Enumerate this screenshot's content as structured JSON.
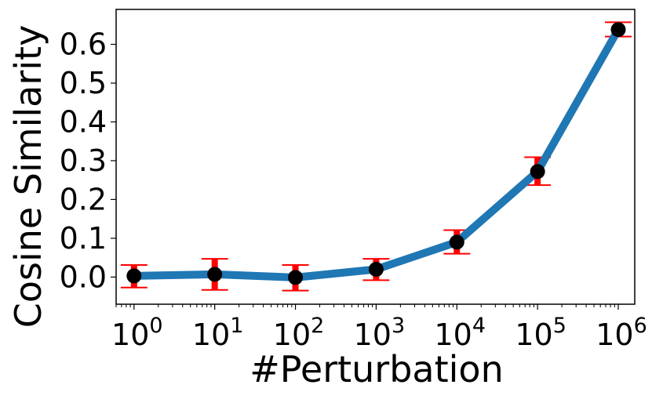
{
  "chart_data": {
    "type": "line",
    "xscale": "log",
    "xlabel": "#Perturbation",
    "ylabel": "Cosine Similarity",
    "xlim": [
      0.6,
      1600000
    ],
    "ylim": [
      -0.07,
      0.69
    ],
    "x_ticks": [
      {
        "value": 1,
        "base": "10",
        "exp": "0"
      },
      {
        "value": 10,
        "base": "10",
        "exp": "1"
      },
      {
        "value": 100,
        "base": "10",
        "exp": "2"
      },
      {
        "value": 1000,
        "base": "10",
        "exp": "3"
      },
      {
        "value": 10000,
        "base": "10",
        "exp": "4"
      },
      {
        "value": 100000,
        "base": "10",
        "exp": "5"
      },
      {
        "value": 1000000,
        "base": "10",
        "exp": "6"
      }
    ],
    "y_ticks": [
      {
        "value": 0.0,
        "label": "0.0"
      },
      {
        "value": 0.1,
        "label": "0.1"
      },
      {
        "value": 0.2,
        "label": "0.2"
      },
      {
        "value": 0.3,
        "label": "0.3"
      },
      {
        "value": 0.4,
        "label": "0.4"
      },
      {
        "value": 0.5,
        "label": "0.5"
      },
      {
        "value": 0.6,
        "label": "0.6"
      }
    ],
    "series": [
      {
        "x": [
          1,
          10,
          100,
          1000,
          10000,
          100000,
          1000000
        ],
        "y": [
          0.003,
          0.007,
          -0.001,
          0.02,
          0.09,
          0.272,
          0.638
        ],
        "yerr_low": [
          -0.027,
          -0.033,
          -0.035,
          -0.008,
          0.06,
          0.237,
          0.62
        ],
        "yerr_high": [
          0.031,
          0.047,
          0.031,
          0.047,
          0.121,
          0.309,
          0.657
        ],
        "line_color": "#1f77b4",
        "marker_color": "#000000",
        "errorbar_color": "#ff0000"
      }
    ],
    "grid": false,
    "legend": "none"
  }
}
